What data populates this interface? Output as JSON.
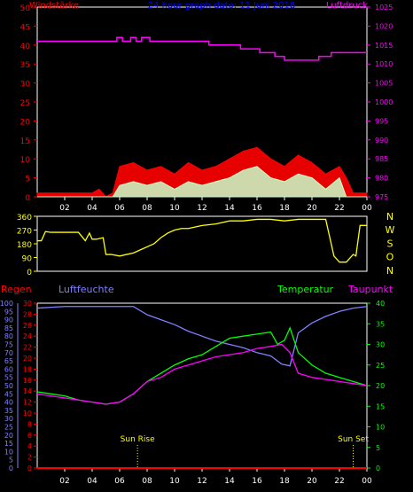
{
  "chart_data": [
    {
      "type": "line",
      "id": "wind_pressure",
      "title": "24 hour graph dato: 11 Juni 2018",
      "left_label": "Windstärke",
      "right_label": "Luftdruck",
      "x_ticks": [
        "02",
        "04",
        "06",
        "08",
        "10",
        "12",
        "14",
        "16",
        "18",
        "20",
        "22",
        "00"
      ],
      "x_range": [
        0,
        24
      ],
      "left_axis": {
        "ticks": [
          "0",
          "5",
          "10",
          "15",
          "20",
          "25",
          "30",
          "35",
          "40",
          "45",
          "50"
        ],
        "range": [
          0,
          50
        ]
      },
      "right_axis": {
        "ticks": [
          "975",
          "980",
          "985",
          "990",
          "995",
          "1000",
          "1005",
          "1010",
          "1015",
          "1020",
          "1025"
        ],
        "range": [
          975,
          1025
        ]
      },
      "colors": {
        "gust": "#ff0000",
        "wind": "#c8ffc8",
        "pressure": "#ff00ff",
        "frame": "#ffffff"
      },
      "series": [
        {
          "key": "pressure",
          "x": [
            0,
            5.8,
            5.8,
            6.2,
            6.2,
            6.8,
            6.8,
            7.2,
            7.2,
            7.6,
            7.6,
            8.2,
            8.2,
            12.5,
            12.5,
            14.8,
            14.8,
            16.2,
            16.2,
            17.3,
            17.3,
            18.0,
            18.0,
            20.5,
            20.5,
            21.4,
            21.4,
            24
          ],
          "y": [
            1016,
            1016,
            1017,
            1017,
            1016,
            1016,
            1017,
            1017,
            1016,
            1016,
            1017,
            1017,
            1016,
            1016,
            1015,
            1015,
            1014,
            1014,
            1013,
            1013,
            1012,
            1012,
            1011,
            1011,
            1012,
            1012,
            1013,
            1013
          ]
        },
        {
          "key": "gust",
          "x": [
            0,
            1,
            2,
            3,
            4,
            4.5,
            5,
            5.5,
            6,
            7,
            8,
            9,
            10,
            11,
            12,
            13,
            14,
            15,
            16,
            17,
            18,
            19,
            20,
            21,
            22,
            22.5,
            23,
            24
          ],
          "y": [
            1,
            1,
            1,
            1,
            1,
            2,
            0,
            1,
            8,
            9,
            7,
            8,
            6,
            9,
            7,
            8,
            10,
            12,
            13,
            10,
            8,
            11,
            9,
            6,
            8,
            5,
            1,
            1
          ]
        },
        {
          "key": "wind",
          "x": [
            0,
            1,
            2,
            3,
            4,
            5,
            5.5,
            6,
            7,
            8,
            9,
            10,
            11,
            12,
            13,
            14,
            15,
            16,
            17,
            18,
            19,
            20,
            21,
            22,
            22.5,
            23,
            24
          ],
          "y": [
            0,
            0,
            0,
            0,
            0,
            0,
            0,
            3,
            4,
            3,
            4,
            2,
            4,
            3,
            4,
            5,
            7,
            8,
            5,
            4,
            6,
            5,
            2,
            5,
            0,
            0,
            0
          ]
        }
      ]
    },
    {
      "type": "line",
      "id": "wind_direction",
      "right_label": [
        "N",
        "W",
        "S",
        "O",
        "N"
      ],
      "left_axis": {
        "ticks": [
          "0",
          "90",
          "180",
          "270",
          "360"
        ],
        "range": [
          0,
          360
        ]
      },
      "x_range": [
        0,
        24
      ],
      "colors": {
        "direction": "#ffff00"
      },
      "series": [
        {
          "key": "direction",
          "x": [
            0,
            0.3,
            0.6,
            1,
            1.5,
            2,
            2.5,
            3,
            3.5,
            3.8,
            4,
            4.3,
            4.8,
            5.0,
            5.4,
            6,
            6.5,
            7,
            7.5,
            8,
            8.5,
            9,
            9.5,
            10,
            10.5,
            11,
            12,
            13,
            14,
            15,
            16,
            17,
            18,
            19,
            20,
            21,
            21.6,
            22,
            22.5,
            23,
            23.2,
            23.5,
            24
          ],
          "y": [
            200,
            200,
            260,
            255,
            255,
            255,
            255,
            255,
            200,
            250,
            210,
            210,
            220,
            110,
            110,
            100,
            110,
            120,
            140,
            160,
            180,
            220,
            250,
            270,
            280,
            280,
            300,
            310,
            330,
            330,
            340,
            340,
            330,
            340,
            340,
            340,
            100,
            60,
            60,
            110,
            100,
            300,
            300
          ]
        }
      ]
    },
    {
      "type": "line",
      "id": "temp_humidity",
      "left_labels": [
        "Regen",
        "Luftfeuchte"
      ],
      "right_labels": [
        "Temperatur",
        "Taupunkt"
      ],
      "rain_axis": {
        "ticks": [
          "0",
          "2",
          "4",
          "6",
          "8",
          "10",
          "12",
          "14",
          "16",
          "18",
          "20",
          "22",
          "24",
          "26",
          "28",
          "30"
        ],
        "range": [
          0,
          30
        ]
      },
      "humidity_axis": {
        "ticks": [
          "0",
          "5",
          "10",
          "15",
          "20",
          "25",
          "30",
          "35",
          "40",
          "45",
          "50",
          "55",
          "60",
          "65",
          "70",
          "75",
          "80",
          "85",
          "90",
          "95",
          "100"
        ],
        "range": [
          0,
          100
        ]
      },
      "temp_axis": {
        "ticks": [
          "0",
          "5",
          "10",
          "15",
          "20",
          "25",
          "30",
          "35",
          "40"
        ],
        "range": [
          0,
          40
        ]
      },
      "x_ticks": [
        "02",
        "04",
        "06",
        "08",
        "10",
        "12",
        "14",
        "16",
        "18",
        "20",
        "22",
        "00"
      ],
      "x_range": [
        0,
        24
      ],
      "annotations": [
        {
          "text": "Sun Rise",
          "x": 7.3
        },
        {
          "text": "Sun Set",
          "x": 23.0
        }
      ],
      "colors": {
        "rain": "#ff0000",
        "humidity": "#8080ff",
        "temperature": "#00ff00",
        "dewpoint": "#ff00ff",
        "sun": "#ffff00"
      },
      "series": [
        {
          "key": "humidity",
          "x": [
            0,
            2,
            4,
            6,
            7,
            8,
            9,
            10,
            11,
            12,
            13,
            14,
            15,
            16,
            17,
            17.8,
            18.4,
            19,
            20,
            21,
            22,
            23,
            24
          ],
          "y": [
            97,
            98,
            98,
            98,
            98,
            93,
            90,
            87,
            83,
            80,
            77,
            75,
            73,
            70,
            68,
            63,
            62,
            82,
            88,
            92,
            95,
            97,
            98
          ]
        },
        {
          "key": "temperature",
          "x": [
            0,
            1,
            2,
            3,
            4,
            5,
            6,
            7,
            8,
            9,
            10,
            11,
            12,
            13,
            14,
            15,
            16,
            17,
            17.5,
            18,
            18.4,
            19,
            20,
            21,
            22,
            23,
            24
          ],
          "y": [
            18.5,
            18,
            17.5,
            16.5,
            16,
            15.5,
            16,
            18,
            21,
            23,
            25,
            26.5,
            27.5,
            29.5,
            31.5,
            32,
            32.5,
            33,
            30,
            31,
            34,
            28,
            25,
            23,
            22,
            21,
            20
          ]
        },
        {
          "key": "dewpoint",
          "x": [
            0,
            1,
            2,
            3,
            4,
            5,
            6,
            7,
            8,
            9,
            10,
            11,
            12,
            13,
            14,
            15,
            16,
            17,
            17.8,
            18.4,
            19,
            20,
            21,
            22,
            23,
            24
          ],
          "y": [
            18,
            17.5,
            17,
            16.5,
            16,
            15.5,
            16,
            18,
            21,
            22,
            24,
            25,
            26,
            27,
            27.5,
            28,
            29,
            29.5,
            30,
            28,
            23,
            22,
            21.5,
            21,
            20.5,
            20
          ]
        },
        {
          "key": "rain",
          "x": [
            0,
            24
          ],
          "y": [
            0,
            0
          ]
        }
      ]
    }
  ]
}
